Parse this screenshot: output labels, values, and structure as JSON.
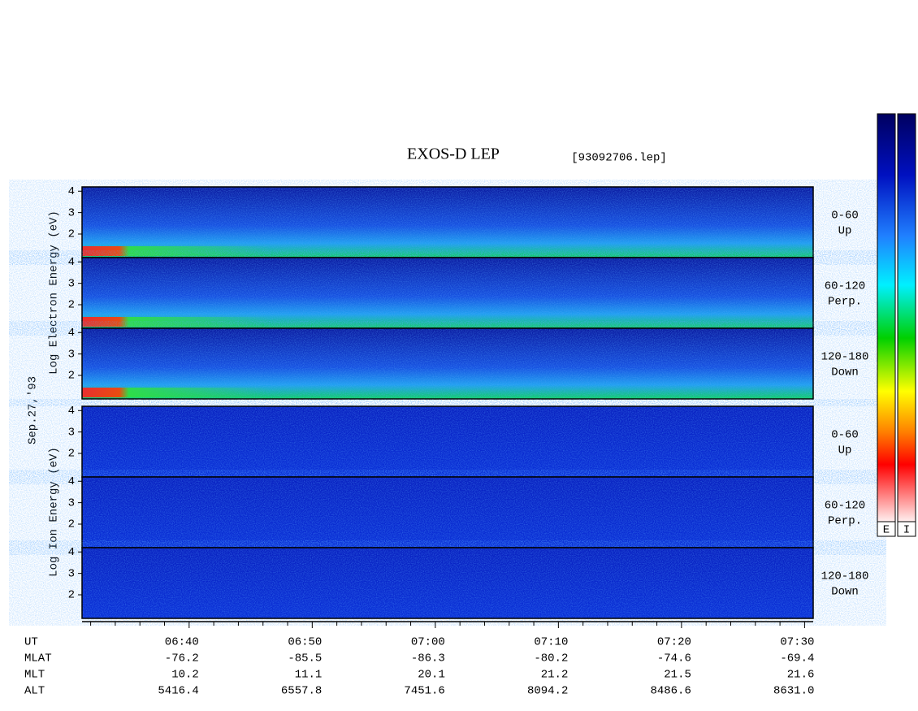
{
  "chart_data": {
    "type": "spectrogram",
    "title": "EXOS-D LEP",
    "file": "[93092706.lep]",
    "date": "Sep.27,'93",
    "y_label_electron": "Log Electron Energy (eV)",
    "y_label_ion": "Log Ion Energy (eV)",
    "electron_panels": [
      {
        "pitch": "0-60",
        "direction": "Up",
        "ylim": [
          0.9,
          4.2
        ],
        "yticks": [
          2,
          3,
          4
        ]
      },
      {
        "pitch": "60-120",
        "direction": "Perp.",
        "ylim": [
          0.9,
          4.2
        ],
        "yticks": [
          2,
          3,
          4
        ]
      },
      {
        "pitch": "120-180",
        "direction": "Down",
        "ylim": [
          0.9,
          4.2
        ],
        "yticks": [
          2,
          3,
          4
        ]
      }
    ],
    "ion_panels": [
      {
        "pitch": "0-60",
        "direction": "Up",
        "ylim": [
          0.9,
          4.2
        ],
        "yticks": [
          2,
          3,
          4
        ]
      },
      {
        "pitch": "60-120",
        "direction": "Perp.",
        "ylim": [
          0.9,
          4.2
        ],
        "yticks": [
          2,
          3,
          4
        ]
      },
      {
        "pitch": "120-180",
        "direction": "Down",
        "ylim": [
          0.9,
          4.2
        ],
        "yticks": [
          2,
          3,
          4
        ]
      }
    ],
    "xlim": [
      31.3,
      90.7
    ],
    "x_label": "UT",
    "xticks": [
      {
        "value": 40,
        "label": "06:40"
      },
      {
        "value": 50,
        "label": "06:50"
      },
      {
        "value": 60,
        "label": "07:00"
      },
      {
        "value": 70,
        "label": "07:10"
      },
      {
        "value": 80,
        "label": "07:20"
      },
      {
        "value": 90,
        "label": "07:30"
      }
    ],
    "x_minor_ticks": [
      32,
      34,
      36,
      38,
      42,
      44,
      46,
      48,
      52,
      54,
      56,
      58,
      62,
      64,
      66,
      68,
      72,
      74,
      76,
      78,
      82,
      84,
      86,
      88
    ],
    "rows": [
      {
        "name": "MLAT",
        "values": [
          "-76.2",
          "-85.5",
          "-86.3",
          "-80.2",
          "-74.6",
          "-69.4"
        ]
      },
      {
        "name": "MLT",
        "values": [
          "10.2",
          "11.1",
          "20.1",
          "21.2",
          "21.5",
          "21.6"
        ]
      },
      {
        "name": "ALT",
        "values": [
          "5416.4",
          "6557.8",
          "7451.6",
          "8094.2",
          "8486.6",
          "8631.0"
        ]
      }
    ],
    "colorbars": [
      "E",
      "I"
    ]
  }
}
